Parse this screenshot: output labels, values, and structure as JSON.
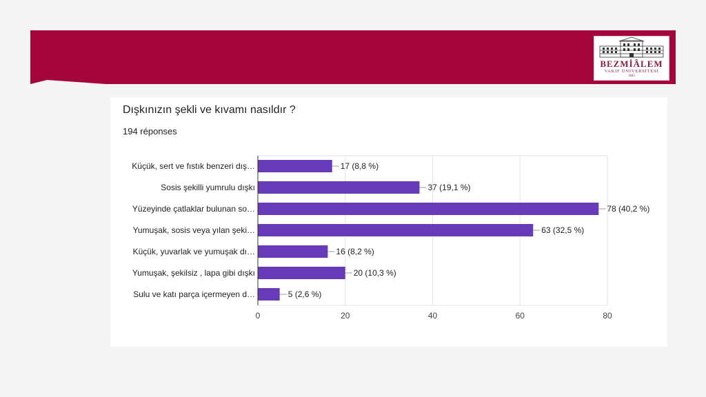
{
  "colors": {
    "banner": "#a4053a",
    "bar": "#673ab7",
    "card": "#ffffff",
    "background": "#f4f4f5"
  },
  "logo": {
    "name": "BEZMİÂLEM",
    "subtitle": "VAKIF ÜNİVERSİTESİ",
    "year": "1845"
  },
  "question": "Dışkınızın şekli ve kıvamı nasıldır ?",
  "responses": "194 réponses",
  "chart_data": {
    "type": "bar",
    "orientation": "horizontal",
    "categories": [
      "Küçük, sert ve fıstık benzeri dış…",
      "Sosis şekilli yumrulu dışkı",
      "Yüzeyinde çatlaklar bulunan so…",
      "Yumuşak, sosis veya yılan şeki…",
      "Küçük, yuvarlak ve yumuşak dı…",
      "Yumuşak, şekilsiz , lapa gibi dışkı",
      "Sulu ve katı parça içermeyen d…"
    ],
    "values": [
      17,
      37,
      78,
      63,
      16,
      20,
      5
    ],
    "data_labels": [
      "17 (8,8 %)",
      "37 (19,1 %)",
      "78 (40,2 %)",
      "63 (32,5 %)",
      "16 (8,2 %)",
      "20 (10,3 %)",
      "5 (2,6 %)"
    ],
    "xlim": [
      0,
      80
    ],
    "xticks": [
      0,
      20,
      40,
      60,
      80
    ],
    "grid": true,
    "legend": "none"
  }
}
